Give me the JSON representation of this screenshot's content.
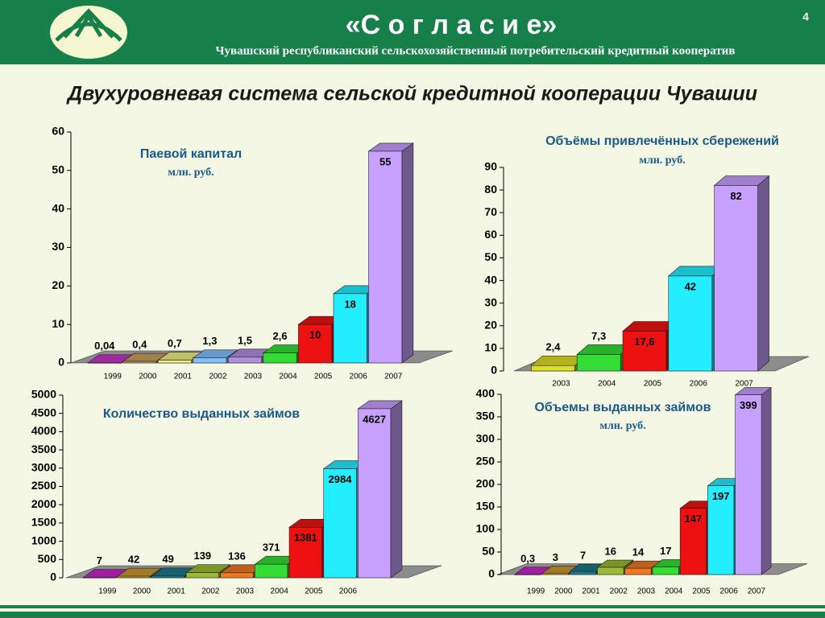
{
  "header": {
    "brand": "«С о г л а с и е»",
    "page": "4",
    "subtitle": "Чувашский республиканский сельскохозяйственный потребительский кредитный кооператив",
    "heading": "Двухуровневая система сельской кредитной кооперации  Чувашии"
  },
  "chart_data": [
    {
      "type": "bar3d",
      "title": "Паевой капитал",
      "subtitle": "млн. руб.",
      "categories": [
        "1999",
        "2000",
        "2001",
        "2002",
        "2003",
        "2004",
        "2005",
        "2006",
        "2007"
      ],
      "values": [
        0.04,
        0.4,
        0.7,
        1.3,
        1.5,
        2.6,
        10,
        18,
        55
      ],
      "value_labels": [
        "0,04",
        "0,4",
        "0,7",
        "1,3",
        "1,5",
        "2,6",
        "10",
        "18",
        "55"
      ],
      "colors": [
        "#cc33cc",
        "#c8a060",
        "#f0f080",
        "#80c0ff",
        "#b090e0",
        "#33dd33",
        "#ee1111",
        "#22eeff",
        "#c8a0ff"
      ],
      "ylim": [
        0,
        60
      ],
      "yticks": [
        0,
        10,
        20,
        30,
        40,
        50,
        60
      ]
    },
    {
      "type": "bar3d",
      "title": "Объёмы привлечённых сбережений",
      "subtitle": "млн. руб.",
      "categories": [
        "2003",
        "2004",
        "2005",
        "2006",
        "2007"
      ],
      "values": [
        2.4,
        7.3,
        17.6,
        42,
        82
      ],
      "value_labels": [
        "2,4",
        "7,3",
        "17,6",
        "42",
        "82"
      ],
      "colors": [
        "#dddd22",
        "#33dd33",
        "#ee1111",
        "#22eeff",
        "#c8a0ff"
      ],
      "ylim": [
        0,
        90
      ],
      "yticks": [
        0,
        10,
        20,
        30,
        40,
        50,
        60,
        70,
        80,
        90
      ]
    },
    {
      "type": "bar3d",
      "title": "Количество выданных займов",
      "categories": [
        "1999",
        "2000",
        "2001",
        "2002",
        "2003",
        "2004",
        "2005",
        "2006",
        null
      ],
      "values": [
        7,
        42,
        49,
        139,
        136,
        371,
        1381,
        2984,
        4627
      ],
      "colors": [
        "#cc22cc",
        "#c89a30",
        "#1a7a8a",
        "#99bb33",
        "#ee7722",
        "#33dd33",
        "#ee1111",
        "#22eeff",
        "#c8a0ff"
      ],
      "ylim": [
        0,
        5000
      ],
      "yticks": [
        0,
        500,
        1000,
        1500,
        2000,
        2500,
        3000,
        3500,
        4000,
        4500,
        5000
      ]
    },
    {
      "type": "bar3d",
      "title": "Объемы  выданных займов",
      "subtitle": "млн. руб.",
      "categories": [
        "1999",
        "2000",
        "2001",
        "2002",
        "2003",
        "2004",
        "2005",
        "2006",
        "2007"
      ],
      "values": [
        0.3,
        3,
        7,
        16,
        14,
        17,
        147,
        197,
        399
      ],
      "value_labels": [
        "0,3",
        "3",
        "7",
        "16",
        "14",
        "17",
        "147",
        "197",
        "399"
      ],
      "colors": [
        "#cc22cc",
        "#c89a30",
        "#1a7a8a",
        "#99bb33",
        "#ee7722",
        "#33dd33",
        "#ee1111",
        "#22eeff",
        "#c8a0ff"
      ],
      "ylim": [
        0,
        400
      ],
      "yticks": [
        0,
        50,
        100,
        150,
        200,
        250,
        300,
        350,
        400
      ]
    }
  ]
}
